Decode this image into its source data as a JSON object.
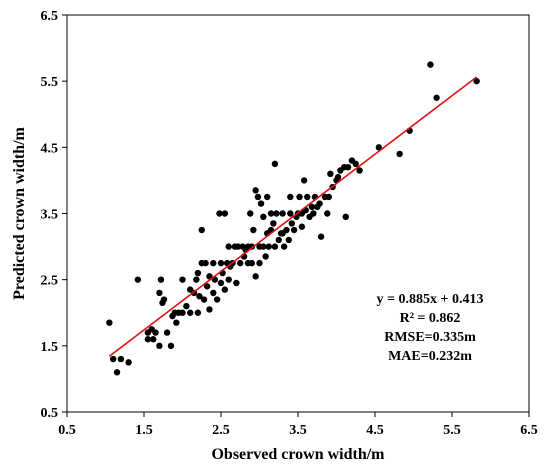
{
  "chart_data": {
    "type": "scatter",
    "xlabel": "Observed crown width/m",
    "ylabel": "Predicted crown width/m",
    "xlim": [
      0.5,
      6.5
    ],
    "ylim": [
      0.5,
      6.5
    ],
    "xticks": [
      "0.5",
      "1.5",
      "2.5",
      "3.5",
      "4.5",
      "5.5",
      "6.5"
    ],
    "yticks": [
      "0.5",
      "1.5",
      "2.5",
      "3.5",
      "4.5",
      "5.5",
      "6.5"
    ],
    "grid": false,
    "series": [
      {
        "marker_color": "#000000",
        "points": [
          [
            1.05,
            1.85
          ],
          [
            1.1,
            1.3
          ],
          [
            1.15,
            1.1
          ],
          [
            1.2,
            1.3
          ],
          [
            1.3,
            1.25
          ],
          [
            1.42,
            2.5
          ],
          [
            1.55,
            1.6
          ],
          [
            1.55,
            1.7
          ],
          [
            1.6,
            1.75
          ],
          [
            1.62,
            1.6
          ],
          [
            1.65,
            1.7
          ],
          [
            1.7,
            1.5
          ],
          [
            1.7,
            2.3
          ],
          [
            1.72,
            2.5
          ],
          [
            1.74,
            2.15
          ],
          [
            1.76,
            2.2
          ],
          [
            1.8,
            1.7
          ],
          [
            1.85,
            1.5
          ],
          [
            1.87,
            1.95
          ],
          [
            1.9,
            2.0
          ],
          [
            1.92,
            1.85
          ],
          [
            1.95,
            2.0
          ],
          [
            2.0,
            2.5
          ],
          [
            2.0,
            2.0
          ],
          [
            2.05,
            2.1
          ],
          [
            2.1,
            2.35
          ],
          [
            2.1,
            2.0
          ],
          [
            2.15,
            2.3
          ],
          [
            2.18,
            2.5
          ],
          [
            2.2,
            2.6
          ],
          [
            2.2,
            2.0
          ],
          [
            2.22,
            2.25
          ],
          [
            2.25,
            3.25
          ],
          [
            2.25,
            2.75
          ],
          [
            2.28,
            2.2
          ],
          [
            2.3,
            2.75
          ],
          [
            2.32,
            2.4
          ],
          [
            2.35,
            2.55
          ],
          [
            2.35,
            2.05
          ],
          [
            2.4,
            2.75
          ],
          [
            2.4,
            2.3
          ],
          [
            2.42,
            2.5
          ],
          [
            2.45,
            2.2
          ],
          [
            2.48,
            3.5
          ],
          [
            2.5,
            2.75
          ],
          [
            2.5,
            2.45
          ],
          [
            2.52,
            2.6
          ],
          [
            2.55,
            3.5
          ],
          [
            2.55,
            2.35
          ],
          [
            2.58,
            2.75
          ],
          [
            2.6,
            3.0
          ],
          [
            2.6,
            2.5
          ],
          [
            2.62,
            2.7
          ],
          [
            2.65,
            2.75
          ],
          [
            2.68,
            3.0
          ],
          [
            2.7,
            2.45
          ],
          [
            2.72,
            3.0
          ],
          [
            2.75,
            2.75
          ],
          [
            2.78,
            3.0
          ],
          [
            2.8,
            2.85
          ],
          [
            2.82,
            2.95
          ],
          [
            2.85,
            3.0
          ],
          [
            2.85,
            2.75
          ],
          [
            2.88,
            3.5
          ],
          [
            2.9,
            2.75
          ],
          [
            2.9,
            3.0
          ],
          [
            2.92,
            3.25
          ],
          [
            2.95,
            3.85
          ],
          [
            2.95,
            2.55
          ],
          [
            2.98,
            3.75
          ],
          [
            3.0,
            3.0
          ],
          [
            3.0,
            2.75
          ],
          [
            3.02,
            3.65
          ],
          [
            3.05,
            3.0
          ],
          [
            3.05,
            3.45
          ],
          [
            3.08,
            2.85
          ],
          [
            3.1,
            3.2
          ],
          [
            3.1,
            3.75
          ],
          [
            3.12,
            3.0
          ],
          [
            3.15,
            3.5
          ],
          [
            3.15,
            3.25
          ],
          [
            3.18,
            3.35
          ],
          [
            3.2,
            4.25
          ],
          [
            3.2,
            3.0
          ],
          [
            3.22,
            3.5
          ],
          [
            3.25,
            3.1
          ],
          [
            3.28,
            3.2
          ],
          [
            3.3,
            3.2
          ],
          [
            3.3,
            3.5
          ],
          [
            3.32,
            3.0
          ],
          [
            3.35,
            3.25
          ],
          [
            3.38,
            3.1
          ],
          [
            3.4,
            3.5
          ],
          [
            3.4,
            3.75
          ],
          [
            3.42,
            3.35
          ],
          [
            3.45,
            3.25
          ],
          [
            3.48,
            3.45
          ],
          [
            3.5,
            3.5
          ],
          [
            3.52,
            3.75
          ],
          [
            3.55,
            3.3
          ],
          [
            3.55,
            3.5
          ],
          [
            3.58,
            4.0
          ],
          [
            3.6,
            3.55
          ],
          [
            3.62,
            3.75
          ],
          [
            3.65,
            3.45
          ],
          [
            3.68,
            3.6
          ],
          [
            3.7,
            3.5
          ],
          [
            3.72,
            3.75
          ],
          [
            3.75,
            3.6
          ],
          [
            3.78,
            3.65
          ],
          [
            3.8,
            3.15
          ],
          [
            3.85,
            3.75
          ],
          [
            3.88,
            3.5
          ],
          [
            3.9,
            3.75
          ],
          [
            3.92,
            4.1
          ],
          [
            3.95,
            3.9
          ],
          [
            4.0,
            4.0
          ],
          [
            4.02,
            4.05
          ],
          [
            4.05,
            4.15
          ],
          [
            4.1,
            4.2
          ],
          [
            4.12,
            3.45
          ],
          [
            4.15,
            4.2
          ],
          [
            4.2,
            4.3
          ],
          [
            4.25,
            4.25
          ],
          [
            4.3,
            4.15
          ],
          [
            4.55,
            4.5
          ],
          [
            4.82,
            4.4
          ],
          [
            4.95,
            4.75
          ],
          [
            5.22,
            5.75
          ],
          [
            5.3,
            5.25
          ],
          [
            5.82,
            5.5
          ]
        ]
      }
    ],
    "fit_line": {
      "slope": 0.885,
      "intercept": 0.413,
      "x_range": [
        1.05,
        5.82
      ],
      "color": "#e01010"
    },
    "annotations": [
      "y = 0.885x + 0.413",
      "R² = 0.862",
      "RMSE=0.335m",
      "MAE=0.232m"
    ]
  }
}
